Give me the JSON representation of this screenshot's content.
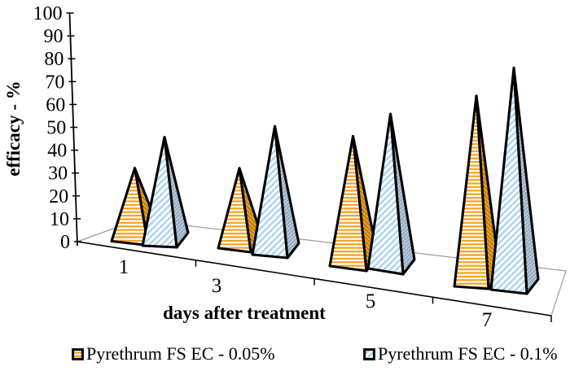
{
  "chart_data": {
    "type": "bar",
    "subtype": "3d-pyramid",
    "title": "",
    "xlabel": "days after treatment",
    "ylabel": "efficacy - %",
    "categories": [
      "1",
      "3",
      "5",
      "7"
    ],
    "series": [
      {
        "name": "Pyrethrum FS EC - 0.05%",
        "values": [
          30,
          33,
          55,
          81
        ]
      },
      {
        "name": "Pyrethrum FS EC - 0.1%",
        "values": [
          45,
          54,
          66,
          95
        ]
      }
    ],
    "ylim": [
      0,
      100
    ],
    "yticks": [
      0,
      10,
      20,
      30,
      40,
      50,
      60,
      70,
      80,
      90,
      100
    ],
    "legend_position": "bottom",
    "grid": false
  },
  "colors": {
    "series1_stripe": "#F9A11B",
    "series1_side_bg": "#EDA42C",
    "series1_side_line": "#B97A06",
    "series2_stripe": "#A9D3F2",
    "series2_side_bg": "#95ABC0",
    "series2_side_line": "#C9D8E6",
    "outline": "#000000",
    "axis": "#000000",
    "floor_line": "#9a9a9a",
    "text": "#000000",
    "background": "#ffffff"
  }
}
